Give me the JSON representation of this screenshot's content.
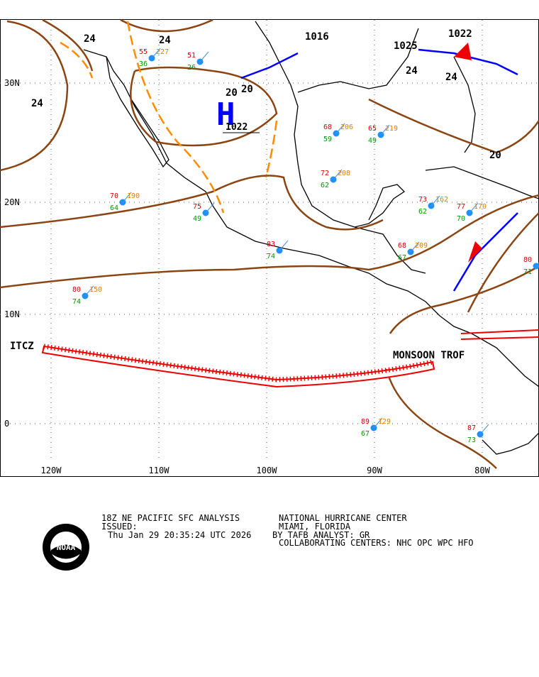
{
  "map": {
    "lat_labels": [
      "30N",
      "20N",
      "10N",
      "0"
    ],
    "lon_labels": [
      "120W",
      "110W",
      "100W",
      "90W",
      "80W"
    ],
    "highs": [
      {
        "symbol": "H",
        "pressure": "1022"
      }
    ],
    "features": [
      "ITCZ",
      "MONSOON TROF"
    ],
    "isobar_labels": [
      "24",
      "24",
      "24",
      "24",
      "20",
      "20",
      "1016",
      "1025",
      "1022",
      "24",
      "20"
    ],
    "stations": [
      {
        "temp": "70",
        "dew": "64",
        "pressure": "190"
      },
      {
        "temp": "80",
        "dew": "74",
        "pressure": "150"
      },
      {
        "temp": "83",
        "dew": "74"
      },
      {
        "temp": "75",
        "dew": "49"
      },
      {
        "temp": "65",
        "dew": "49",
        "pressure": "219"
      },
      {
        "temp": "68",
        "dew": "59",
        "pressure": "206"
      },
      {
        "temp": "72",
        "dew": "62",
        "pressure": "208"
      },
      {
        "temp": "73",
        "dew": "62",
        "pressure": "162"
      },
      {
        "temp": "77",
        "dew": "70",
        "pressure": "170"
      },
      {
        "temp": "68",
        "dew": "67",
        "pressure": "209"
      },
      {
        "temp": "80",
        "dew": "71"
      },
      {
        "temp": "89",
        "dew": "67",
        "pressure": "129"
      },
      {
        "temp": "87",
        "dew": "73"
      },
      {
        "temp": "51",
        "dew": "26"
      },
      {
        "temp": "55",
        "dew": "36",
        "pressure": "227"
      }
    ],
    "footer": {
      "title": "18Z NE PACIFIC SFC ANALYSIS",
      "issued": "ISSUED:",
      "timestamp": "Thu Jan 29 20:35:24 UTC 2026",
      "center": "NATIONAL HURRICANE CENTER",
      "location": "MIAMI, FLORIDA",
      "analyst": "BY TAFB ANALYST: GR",
      "collaborating": "COLLABORATING CENTERS: NHC OPC WPC HFO",
      "logo": "NOAA"
    }
  }
}
